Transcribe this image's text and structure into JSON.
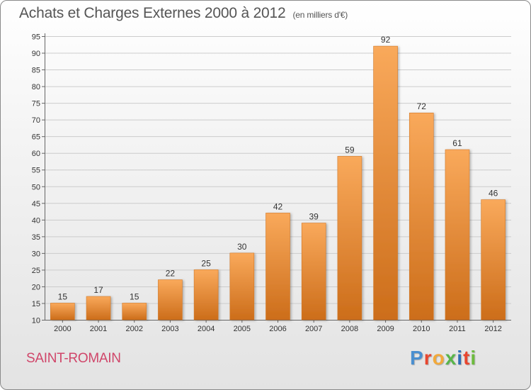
{
  "title": {
    "main": "Achats et Charges Externes 2000 à 2012",
    "unit": "(en milliers d'€)"
  },
  "commune": "SAINT-ROMAIN",
  "brand": {
    "text": "Proxiti",
    "letter_colors": [
      "#4a8fd0",
      "#e8462f",
      "#f2a93b",
      "#58b54a",
      "#2f6fb8",
      "#e8462f",
      "#6dbb3d"
    ]
  },
  "colors": {
    "bar_top": "#f9a95b",
    "bar_bottom": "#cc6d1a",
    "bar_edge": "#d27826",
    "grid": "#cccccc",
    "axis": "#666666",
    "text": "#333333"
  },
  "chart_data": {
    "type": "bar",
    "title": "Achats et Charges Externes 2000 à 2012",
    "subtitle": "(en milliers d'€)",
    "xlabel": "",
    "ylabel": "",
    "categories": [
      "2000",
      "2001",
      "2002",
      "2003",
      "2004",
      "2005",
      "2006",
      "2007",
      "2008",
      "2009",
      "2010",
      "2011",
      "2012"
    ],
    "values": [
      15,
      17,
      15,
      22,
      25,
      30,
      42,
      39,
      59,
      92,
      72,
      61,
      46
    ],
    "value_labels": [
      "15",
      "17",
      "15",
      "22",
      "25",
      "30",
      "42",
      "39",
      "59",
      "92",
      "72",
      "61",
      "46"
    ],
    "ylim": [
      10,
      95
    ],
    "yticks": [
      10,
      15,
      20,
      25,
      30,
      35,
      40,
      45,
      50,
      55,
      60,
      65,
      70,
      75,
      80,
      85,
      90,
      95
    ],
    "ytick_labels": [
      "10",
      "15",
      "20",
      "25",
      "30",
      "35",
      "40",
      "45",
      "50",
      "55",
      "60",
      "65",
      "70",
      "75",
      "80",
      "85",
      "90",
      "95"
    ],
    "grid": true,
    "legend": "none"
  }
}
